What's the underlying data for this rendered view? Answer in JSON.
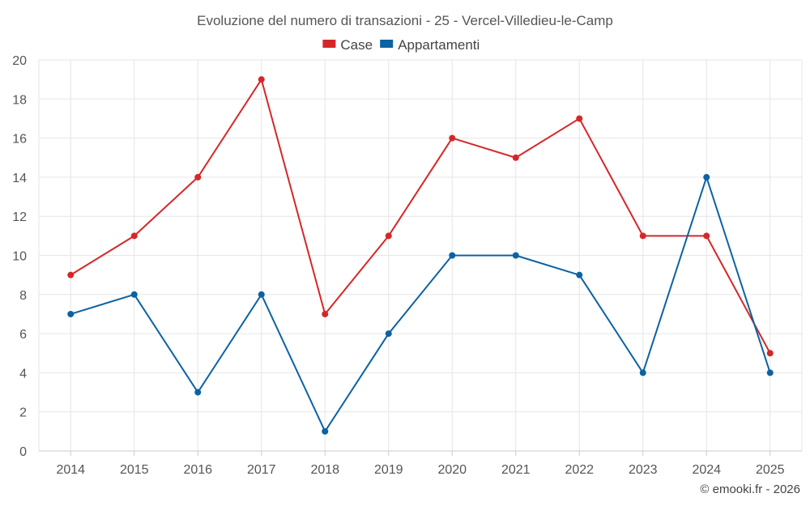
{
  "chart_data": {
    "type": "line",
    "title": "Evoluzione del numero di transazioni - 25 - Vercel-Villedieu-le-Camp",
    "categories": [
      "2014",
      "2015",
      "2016",
      "2017",
      "2018",
      "2019",
      "2020",
      "2021",
      "2022",
      "2023",
      "2024",
      "2025"
    ],
    "series": [
      {
        "name": "Case",
        "color": "#d62728",
        "values": [
          9,
          11,
          14,
          19,
          7,
          11,
          16,
          15,
          17,
          11,
          11,
          5
        ]
      },
      {
        "name": "Appartamenti",
        "color": "#0b62a4",
        "values": [
          7,
          8,
          3,
          8,
          1,
          6,
          10,
          10,
          9,
          4,
          14,
          4
        ]
      }
    ],
    "yticks": [
      0,
      2,
      4,
      6,
      8,
      10,
      12,
      14,
      16,
      18,
      20
    ],
    "ylim": [
      0,
      20
    ],
    "xlabel": "",
    "ylabel": "",
    "legend_position": "top-center",
    "grid": true
  },
  "credit": "© emooki.fr - 2026"
}
